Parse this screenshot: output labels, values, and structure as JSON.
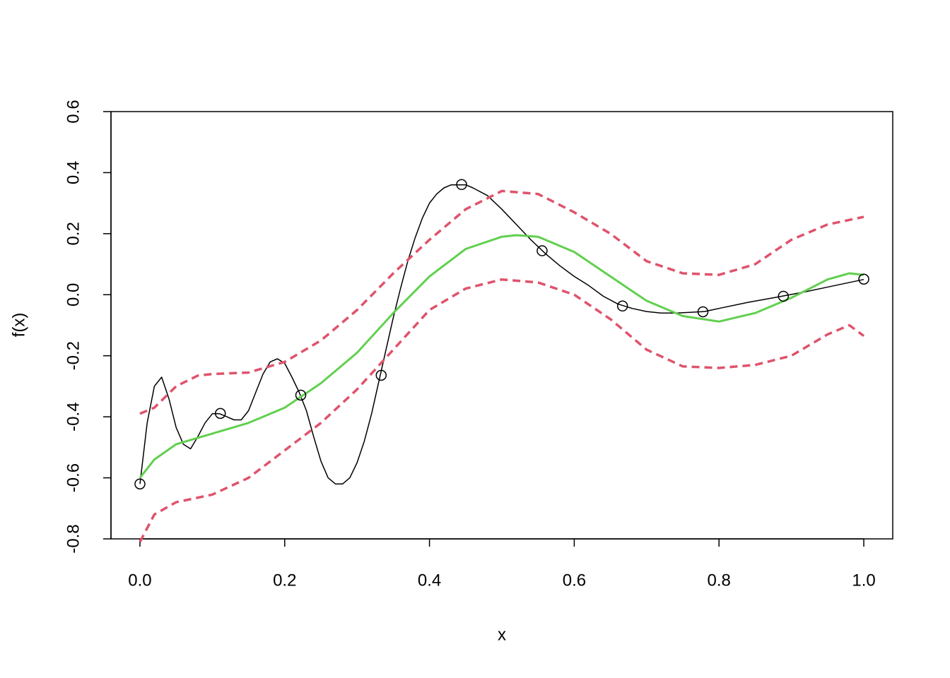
{
  "chart_data": {
    "type": "line",
    "xlabel": "x",
    "ylabel": "f(x)",
    "xlim": [
      -0.04,
      1.04
    ],
    "ylim": [
      -0.8,
      0.6
    ],
    "xticks": [
      {
        "value": 0,
        "label": "0.0"
      },
      0.2,
      0.4,
      0.6,
      0.8,
      {
        "value": 1,
        "label": "1.0"
      }
    ],
    "yticks": [
      -0.8,
      -0.6,
      -0.4,
      -0.2,
      {
        "value": 0,
        "label": "0.0"
      },
      0.2,
      0.4,
      0.6
    ],
    "series": [
      {
        "color": "#000000",
        "style": "solid",
        "x": [
          0,
          0.01,
          0.02,
          0.03,
          0.04,
          0.05,
          0.06,
          0.07,
          0.08,
          0.09,
          0.1,
          0.11,
          0.12,
          0.13,
          0.14,
          0.15,
          0.16,
          0.17,
          0.18,
          0.19,
          0.2,
          0.21,
          0.22,
          0.23,
          0.24,
          0.25,
          0.26,
          0.27,
          0.28,
          0.29,
          0.3,
          0.31,
          0.32,
          0.33,
          0.34,
          0.35,
          0.36,
          0.37,
          0.38,
          0.39,
          0.4,
          0.41,
          0.42,
          0.43,
          0.44,
          0.45,
          0.46,
          0.48,
          0.5,
          0.52,
          0.54,
          0.56,
          0.58,
          0.6,
          0.62,
          0.64,
          0.66,
          0.68,
          0.7,
          0.72,
          0.74,
          0.76,
          0.78,
          0.8,
          0.84,
          0.88,
          0.92,
          0.96,
          1.0
        ],
        "values": [
          -0.62,
          -0.42,
          -0.3,
          -0.27,
          -0.34,
          -0.435,
          -0.49,
          -0.505,
          -0.465,
          -0.42,
          -0.39,
          -0.39,
          -0.4,
          -0.41,
          -0.41,
          -0.38,
          -0.32,
          -0.26,
          -0.22,
          -0.21,
          -0.225,
          -0.27,
          -0.32,
          -0.38,
          -0.465,
          -0.545,
          -0.6,
          -0.62,
          -0.62,
          -0.6,
          -0.55,
          -0.48,
          -0.39,
          -0.285,
          -0.18,
          -0.075,
          0.02,
          0.11,
          0.185,
          0.25,
          0.3,
          0.33,
          0.35,
          0.36,
          0.36,
          0.36,
          0.35,
          0.325,
          0.28,
          0.23,
          0.18,
          0.135,
          0.095,
          0.06,
          0.03,
          -0.005,
          -0.03,
          -0.045,
          -0.055,
          -0.06,
          -0.06,
          -0.058,
          -0.055,
          -0.045,
          -0.025,
          -0.008,
          0.01,
          0.03,
          0.05
        ]
      },
      {
        "color": "#df536b",
        "style": "dashed",
        "x": [
          0,
          0.02,
          0.05,
          0.08,
          0.1,
          0.15,
          0.2,
          0.25,
          0.3,
          0.35,
          0.4,
          0.45,
          0.5,
          0.55,
          0.6,
          0.65,
          0.7,
          0.75,
          0.8,
          0.85,
          0.9,
          0.95,
          1.0
        ],
        "values": [
          -0.39,
          -0.37,
          -0.3,
          -0.265,
          -0.26,
          -0.255,
          -0.22,
          -0.15,
          -0.05,
          0.07,
          0.18,
          0.28,
          0.34,
          0.33,
          0.27,
          0.2,
          0.11,
          0.07,
          0.065,
          0.1,
          0.18,
          0.23,
          0.255
        ]
      },
      {
        "color": "#df536b",
        "style": "dashed",
        "x": [
          0,
          0.02,
          0.05,
          0.1,
          0.15,
          0.2,
          0.25,
          0.3,
          0.35,
          0.4,
          0.45,
          0.5,
          0.55,
          0.6,
          0.65,
          0.7,
          0.75,
          0.8,
          0.85,
          0.9,
          0.95,
          0.98,
          1.0
        ],
        "values": [
          -0.81,
          -0.72,
          -0.68,
          -0.655,
          -0.6,
          -0.51,
          -0.42,
          -0.31,
          -0.18,
          -0.05,
          0.02,
          0.05,
          0.04,
          0.0,
          -0.08,
          -0.18,
          -0.235,
          -0.24,
          -0.23,
          -0.2,
          -0.13,
          -0.1,
          -0.135
        ]
      },
      {
        "color": "#61d04f",
        "style": "solid",
        "x": [
          0,
          0.02,
          0.05,
          0.1,
          0.15,
          0.2,
          0.25,
          0.3,
          0.35,
          0.4,
          0.45,
          0.5,
          0.52,
          0.55,
          0.6,
          0.65,
          0.7,
          0.75,
          0.8,
          0.85,
          0.9,
          0.95,
          0.98,
          1.0
        ],
        "values": [
          -0.6,
          -0.54,
          -0.49,
          -0.455,
          -0.42,
          -0.37,
          -0.29,
          -0.19,
          -0.06,
          0.06,
          0.15,
          0.19,
          0.195,
          0.19,
          0.14,
          0.06,
          -0.02,
          -0.07,
          -0.088,
          -0.06,
          -0.01,
          0.05,
          0.07,
          0.065
        ]
      },
      {
        "color": "#000000",
        "style": "points",
        "x": [
          0,
          0.1111,
          0.2222,
          0.3333,
          0.4444,
          0.5556,
          0.6667,
          0.7778,
          0.8889,
          1.0
        ],
        "values": [
          -0.62,
          -0.389,
          -0.329,
          -0.264,
          0.361,
          0.144,
          -0.037,
          -0.056,
          -0.005,
          0.051
        ]
      }
    ]
  }
}
